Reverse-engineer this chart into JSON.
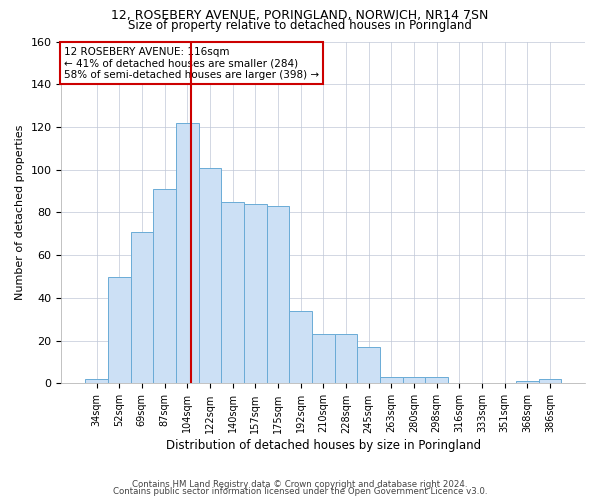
{
  "title1": "12, ROSEBERY AVENUE, PORINGLAND, NORWICH, NR14 7SN",
  "title2": "Size of property relative to detached houses in Poringland",
  "xlabel": "Distribution of detached houses by size in Poringland",
  "ylabel": "Number of detached properties",
  "bar_labels": [
    "34sqm",
    "52sqm",
    "69sqm",
    "87sqm",
    "104sqm",
    "122sqm",
    "140sqm",
    "157sqm",
    "175sqm",
    "192sqm",
    "210sqm",
    "228sqm",
    "245sqm",
    "263sqm",
    "280sqm",
    "298sqm",
    "316sqm",
    "333sqm",
    "351sqm",
    "368sqm",
    "386sqm"
  ],
  "bar_values": [
    2,
    50,
    71,
    91,
    122,
    101,
    85,
    84,
    83,
    34,
    23,
    23,
    17,
    3,
    3,
    3,
    0,
    0,
    0,
    1,
    2
  ],
  "bar_color": "#cce0f5",
  "bar_edge_color": "#6aabd6",
  "property_label": "12 ROSEBERY AVENUE: 116sqm",
  "annotation_line1": "← 41% of detached houses are smaller (284)",
  "annotation_line2": "58% of semi-detached houses are larger (398) →",
  "vline_color": "#cc0000",
  "ylim": [
    0,
    160
  ],
  "yticks": [
    0,
    20,
    40,
    60,
    80,
    100,
    120,
    140,
    160
  ],
  "footnote1": "Contains HM Land Registry data © Crown copyright and database right 2024.",
  "footnote2": "Contains public sector information licensed under the Open Government Licence v3.0.",
  "bg_color": "#ffffff",
  "grid_color": "#c0c8d8"
}
